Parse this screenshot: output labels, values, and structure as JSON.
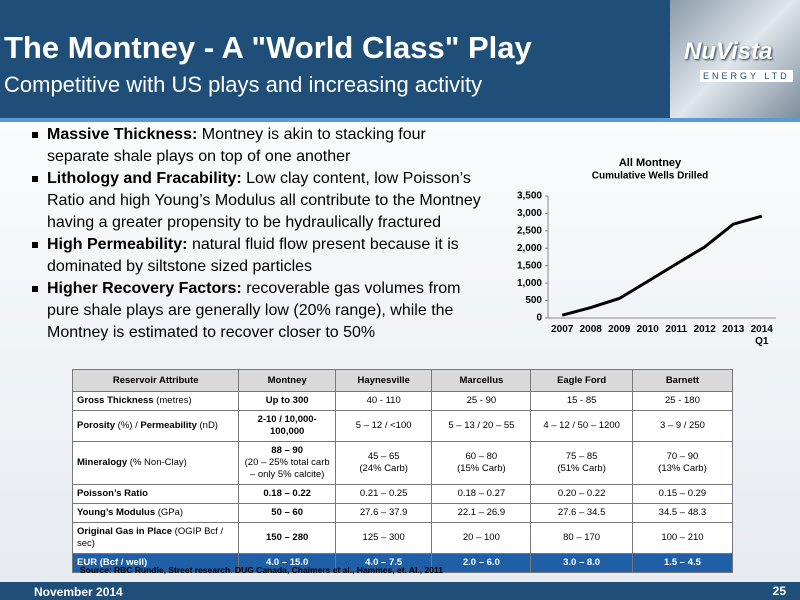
{
  "header": {
    "title": "The Montney - A \"World Class\" Play",
    "subtitle": "Competitive with US plays and increasing activity",
    "logo": {
      "name": "NuVista",
      "tagline": "ENERGY LTD"
    }
  },
  "bullets": [
    {
      "heading": "Massive Thickness:",
      "text": "Montney is akin to stacking four separate shale plays on top of one another"
    },
    {
      "heading": "Lithology and Fracability:",
      "text": "Low clay content, low Poisson’s Ratio and high Young’s Modulus all contribute to the Montney having a greater propensity to be hydraulically fractured"
    },
    {
      "heading": "High Permeability:",
      "text": "natural fluid flow present because it is dominated by siltstone sized particles"
    },
    {
      "heading": "Higher Recovery Factors:",
      "text": "recoverable gas volumes from pure shale plays are generally low (20% range), while the Montney is estimated to recover closer to 50%"
    }
  ],
  "chart": {
    "type": "line",
    "title": "All Montney",
    "subtitle": "Cumulative Wells Drilled",
    "categories": [
      "2007",
      "2008",
      "2009",
      "2010",
      "2011",
      "2012",
      "2013",
      "2014 Q1"
    ],
    "values": [
      80,
      300,
      560,
      1050,
      1550,
      2040,
      2690,
      2920
    ],
    "color": "#000000",
    "ylim": [
      0,
      3500
    ],
    "yticks": [
      0,
      500,
      {
        "value": 1000,
        "label": "1,000"
      },
      {
        "value": 1500,
        "label": "1,500"
      },
      {
        "value": 2000,
        "label": "2,000"
      },
      {
        "value": 2500,
        "label": "2,500"
      },
      {
        "value": 3000,
        "label": "3,000"
      },
      {
        "value": 3500,
        "label": "3,500"
      }
    ]
  },
  "table": {
    "columns": [
      "Reservoir Attribute",
      "Montney",
      "Haynesville",
      "Marcellus",
      "Eagle Ford",
      "Barnett"
    ],
    "rows": [
      {
        "label": [
          "Gross Thickness",
          " (metres)"
        ],
        "cells": [
          [
            "Up to 300"
          ],
          [
            "40 - 110"
          ],
          [
            "25 - 90"
          ],
          [
            "15 - 85"
          ],
          [
            "25 - 180"
          ]
        ]
      },
      {
        "label": [
          "Porosity",
          " (%) / ",
          "Permeability",
          " (nD)"
        ],
        "cells": [
          [
            "2-10 / 10,000-100,000"
          ],
          [
            "5 – 12 / <100"
          ],
          [
            "5 – 13 / 20 – 55"
          ],
          [
            "4 – 12 / 50 – 1200"
          ],
          [
            "3 – 9 / 250"
          ]
        ]
      },
      {
        "label": [
          "Mineralogy",
          " (% Non-Clay)"
        ],
        "cells": [
          [
            "88 – 90",
            "(20 – 25% total carb – only 5% calcite)"
          ],
          [
            "45 – 65",
            "(24% Carb)"
          ],
          [
            "60 – 80",
            "(15% Carb)"
          ],
          [
            "75 – 85",
            "(51% Carb)"
          ],
          [
            "70 – 90",
            "(13% Carb)"
          ]
        ]
      },
      {
        "label": [
          "Poisson’s Ratio"
        ],
        "cells": [
          [
            "0.18 – 0.22"
          ],
          [
            "0.21 – 0.25"
          ],
          [
            "0.18 – 0.27"
          ],
          [
            "0.20 – 0.22"
          ],
          [
            "0.15 – 0.29"
          ]
        ]
      },
      {
        "label": [
          "Young’s Modulus",
          " (GPa)"
        ],
        "cells": [
          [
            "50 – 60"
          ],
          [
            "27.6 – 37.9"
          ],
          [
            "22.1 – 26.9"
          ],
          [
            "27.6 – 34.5"
          ],
          [
            "34.5 – 48.3"
          ]
        ]
      },
      {
        "label": [
          "Original Gas in Place",
          " (OGIP Bcf / sec)"
        ],
        "cells": [
          [
            "150 – 280"
          ],
          [
            "125 – 300"
          ],
          [
            "20 – 100"
          ],
          [
            "80 – 170"
          ],
          [
            "100 – 210"
          ]
        ]
      },
      {
        "label": [
          "EUR (Bcf / well)"
        ],
        "cells": [
          [
            "4.0 – 15.0"
          ],
          [
            "4.0 – 7.5"
          ],
          [
            "2.0 – 6.0"
          ],
          [
            "3.0 – 8.0"
          ],
          [
            "1.5 – 4.5"
          ]
        ]
      }
    ]
  },
  "source": "Source: RBC Rundle, Street research. DUG Canada, Chalmers et al., Hammes, et.  Al., 2011",
  "footer": {
    "date": "November 2014",
    "page": "25"
  }
}
